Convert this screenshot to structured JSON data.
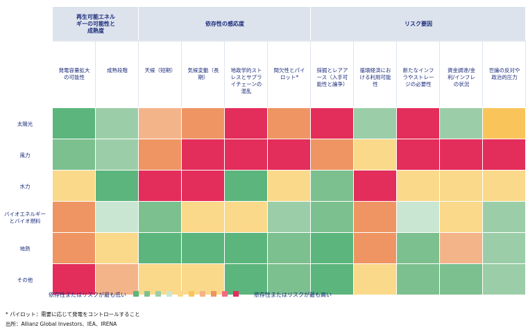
{
  "chart_data": {
    "type": "heatmap",
    "title": "",
    "groups": [
      {
        "label": "再生可能エネルギーの可能性と成熟度",
        "span": 2
      },
      {
        "label": "依存性の感応度",
        "span": 4
      },
      {
        "label": "リスク要因",
        "span": 5
      }
    ],
    "columns": [
      "発電容量拡大の可能性",
      "成熟段階",
      "天候（短期）",
      "気候変動（長期）",
      "地政学的ストレスとサプライチェーンの混乱",
      "間欠性とパイロット*",
      "採掘とレアアース（入手可能性と論争）",
      "循環経済における利用可能性",
      "新たなインフラやストレージの必要性",
      "資金調達/金利/インフレの状況",
      "世論の反対や政治的圧力"
    ],
    "rows": [
      "太陽光",
      "風力",
      "水力",
      "バイオエネルギーとバイオ燃料",
      "地熱",
      "その他"
    ],
    "scale_colors": [
      "#5bb57c",
      "#7cc08f",
      "#9bcea8",
      "#c9e6d2",
      "#fad98a",
      "#f9c55a",
      "#f4b48a",
      "#ee9563",
      "#f06b80",
      "#e32d5a"
    ],
    "values": [
      [
        0,
        2,
        6,
        7,
        9,
        7,
        9,
        2,
        9,
        2,
        5
      ],
      [
        1,
        2,
        7,
        9,
        9,
        9,
        7,
        4,
        9,
        9,
        9
      ],
      [
        4,
        0,
        9,
        9,
        0,
        4,
        1,
        9,
        4,
        4,
        4
      ],
      [
        7,
        3,
        1,
        4,
        4,
        2,
        1,
        7,
        3,
        4,
        2
      ],
      [
        7,
        4,
        0,
        0,
        0,
        1,
        0,
        7,
        1,
        6,
        2
      ],
      [
        9,
        6,
        4,
        4,
        0,
        1,
        0,
        4,
        1,
        1,
        2
      ]
    ],
    "legend": {
      "low_label": "依存性またはリスクが最も低い",
      "high_label": "依存性またはリスクが最も高い"
    }
  },
  "footnotes": {
    "note": "* パイロット：需要に応じて発電をコントロールすること",
    "source": "出所：Allianz Global Investors、IEA、IRENA"
  }
}
